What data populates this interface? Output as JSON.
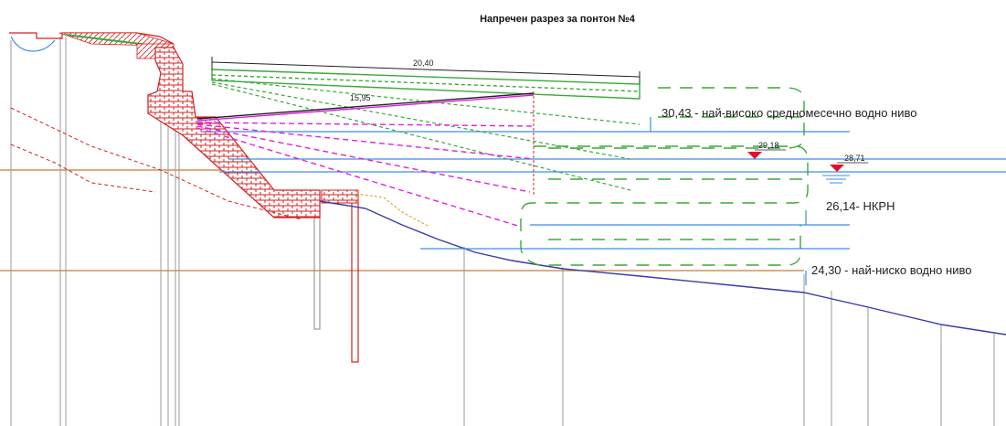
{
  "title": "Напречен разрез за понтон №4",
  "dimensions": {
    "pontoon_length": "20,40",
    "inner_length": "15,95"
  },
  "levels": {
    "highest": "30,43 - най-високо средномесечно водно ниво",
    "mark_a": "29,18",
    "mark_b": "28,71",
    "nkrn": "26,14- НКРН",
    "lowest": "24,30 - най-ниско водно ниво"
  },
  "colors": {
    "water": "#3d8ee8",
    "seabed": "#3a3aa8",
    "wall": "#d42020",
    "pontoon": "#3aa83a",
    "gangway": "#e020e0",
    "ground": "#c87a3a",
    "pile": "#9a9a9a",
    "marker": "#e0102c"
  }
}
